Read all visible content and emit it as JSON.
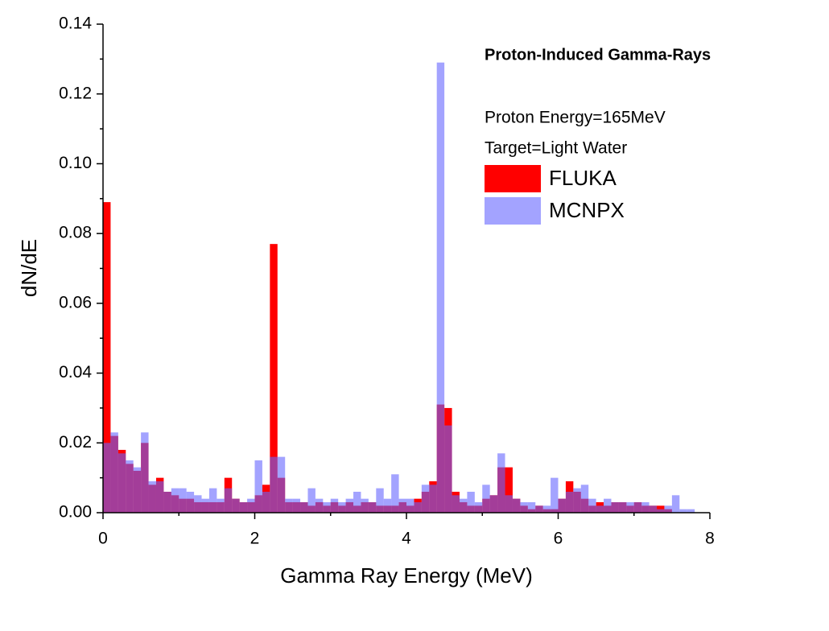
{
  "chart_data": {
    "type": "histogram",
    "title": "Proton-Induced Gamma-Rays",
    "annotations": [
      "Proton Energy=165MeV",
      "Target=Light Water"
    ],
    "xlabel": "Gamma Ray Energy (MeV)",
    "ylabel": "dN/dE",
    "bins": [
      0,
      0.1,
      0.2,
      0.3,
      0.4,
      0.5,
      0.6,
      0.7,
      0.8,
      0.9,
      1,
      1.1,
      1.2,
      1.3,
      1.4,
      1.5,
      1.6,
      1.7,
      1.8,
      1.9,
      2,
      2.1,
      2.2,
      2.3,
      2.4,
      2.5,
      2.6,
      2.7,
      2.8,
      2.9,
      3,
      3.1,
      3.2,
      3.3,
      3.4,
      3.5,
      3.6,
      3.7,
      3.8,
      3.9,
      4,
      4.1,
      4.2,
      4.3,
      4.4,
      4.5,
      4.6,
      4.7,
      4.8,
      4.9,
      5,
      5.1,
      5.2,
      5.3,
      5.4,
      5.5,
      5.6,
      5.7,
      5.8,
      5.9,
      6,
      6.1,
      6.2,
      6.3,
      6.4,
      6.5,
      6.6,
      6.7,
      6.8,
      6.9,
      7,
      7.1,
      7.2,
      7.3,
      7.4,
      7.5,
      7.6,
      7.7,
      7.8,
      7.9,
      8
    ],
    "series": [
      {
        "name": "FLUKA",
        "color": "#ff0000",
        "values": [
          0.089,
          0.022,
          0.018,
          0.014,
          0.012,
          0.02,
          0.008,
          0.01,
          0.006,
          0.005,
          0.004,
          0.004,
          0.003,
          0.003,
          0.003,
          0.003,
          0.01,
          0.004,
          0.003,
          0.003,
          0.005,
          0.008,
          0.077,
          0.01,
          0.003,
          0.003,
          0.003,
          0.002,
          0.003,
          0.002,
          0.003,
          0.002,
          0.003,
          0.002,
          0.003,
          0.003,
          0.002,
          0.002,
          0.002,
          0.003,
          0.002,
          0.004,
          0.006,
          0.009,
          0.031,
          0.03,
          0.006,
          0.003,
          0.002,
          0.002,
          0.004,
          0.005,
          0.013,
          0.013,
          0.004,
          0.002,
          0.001,
          0.002,
          0.001,
          0.001,
          0.004,
          0.009,
          0.006,
          0.004,
          0.002,
          0.003,
          0.002,
          0.003,
          0.003,
          0.002,
          0.003,
          0.002,
          0.002,
          0.002,
          0.001,
          0,
          0,
          0,
          0,
          0
        ]
      },
      {
        "name": "MCNPX",
        "color": "#6666ff99",
        "values": [
          0.02,
          0.023,
          0.017,
          0.015,
          0.013,
          0.023,
          0.009,
          0.009,
          0.006,
          0.007,
          0.007,
          0.006,
          0.005,
          0.004,
          0.007,
          0.004,
          0.007,
          0.004,
          0.003,
          0.004,
          0.015,
          0.006,
          0.016,
          0.016,
          0.004,
          0.004,
          0.003,
          0.007,
          0.004,
          0.003,
          0.004,
          0.003,
          0.004,
          0.006,
          0.004,
          0.003,
          0.007,
          0.004,
          0.011,
          0.004,
          0.004,
          0.003,
          0.008,
          0.008,
          0.129,
          0.025,
          0.005,
          0.004,
          0.006,
          0.003,
          0.008,
          0.005,
          0.017,
          0.005,
          0.004,
          0.003,
          0.003,
          0.002,
          0.002,
          0.01,
          0.004,
          0.006,
          0.007,
          0.008,
          0.004,
          0.002,
          0.004,
          0.003,
          0.003,
          0.003,
          0.003,
          0.003,
          0.002,
          0.001,
          0.002,
          0.005,
          0.001,
          0.001,
          0,
          0
        ]
      }
    ],
    "xlim": [
      0,
      8
    ],
    "xticks": [
      0,
      2,
      4,
      6,
      8
    ],
    "ylim": [
      0,
      0.14
    ],
    "yticks": [
      {
        "value": 0,
        "label": "0.00"
      },
      {
        "value": 0.02,
        "label": "0.02"
      },
      {
        "value": 0.04,
        "label": "0.04"
      },
      {
        "value": 0.06,
        "label": "0.06"
      },
      {
        "value": 0.08,
        "label": "0.08"
      },
      {
        "value": 0.1,
        "label": "0.10"
      },
      {
        "value": 0.12,
        "label": "0.12"
      },
      {
        "value": 0.14,
        "label": "0.14"
      }
    ],
    "grid": false
  }
}
